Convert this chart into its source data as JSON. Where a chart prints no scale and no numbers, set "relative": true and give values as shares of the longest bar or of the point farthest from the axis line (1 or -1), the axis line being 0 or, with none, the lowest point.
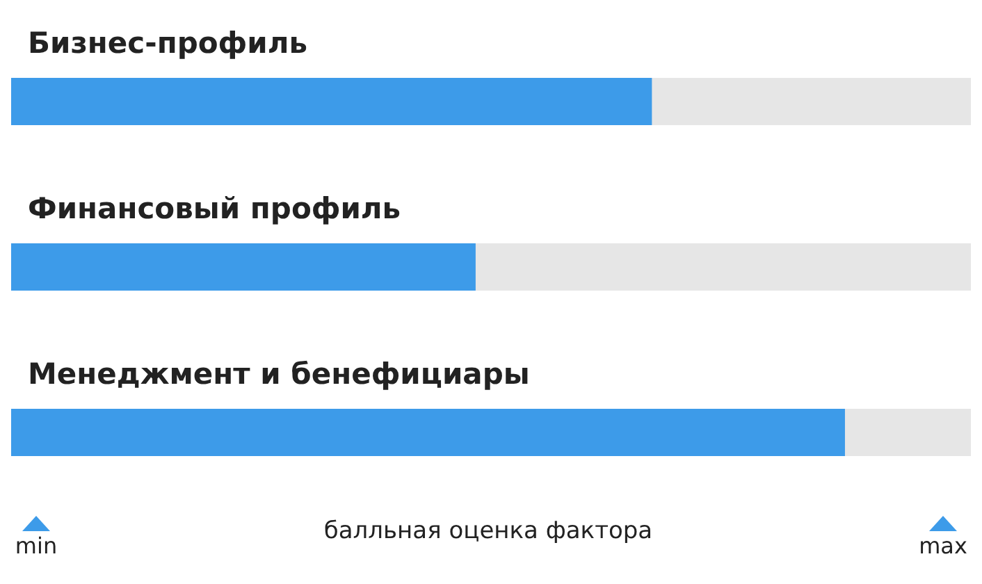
{
  "chart_data": {
    "type": "bar",
    "orientation": "horizontal",
    "relative": true,
    "categories": [
      "Бизнес-профиль",
      "Финансовый профиль",
      "Менеджмент и бенефициары"
    ],
    "values": [
      0.77,
      0.56,
      1
    ],
    "color": "#3d9be9",
    "xlabel": "балльная оценка фактора",
    "annotations": [
      "min",
      "max"
    ]
  }
}
